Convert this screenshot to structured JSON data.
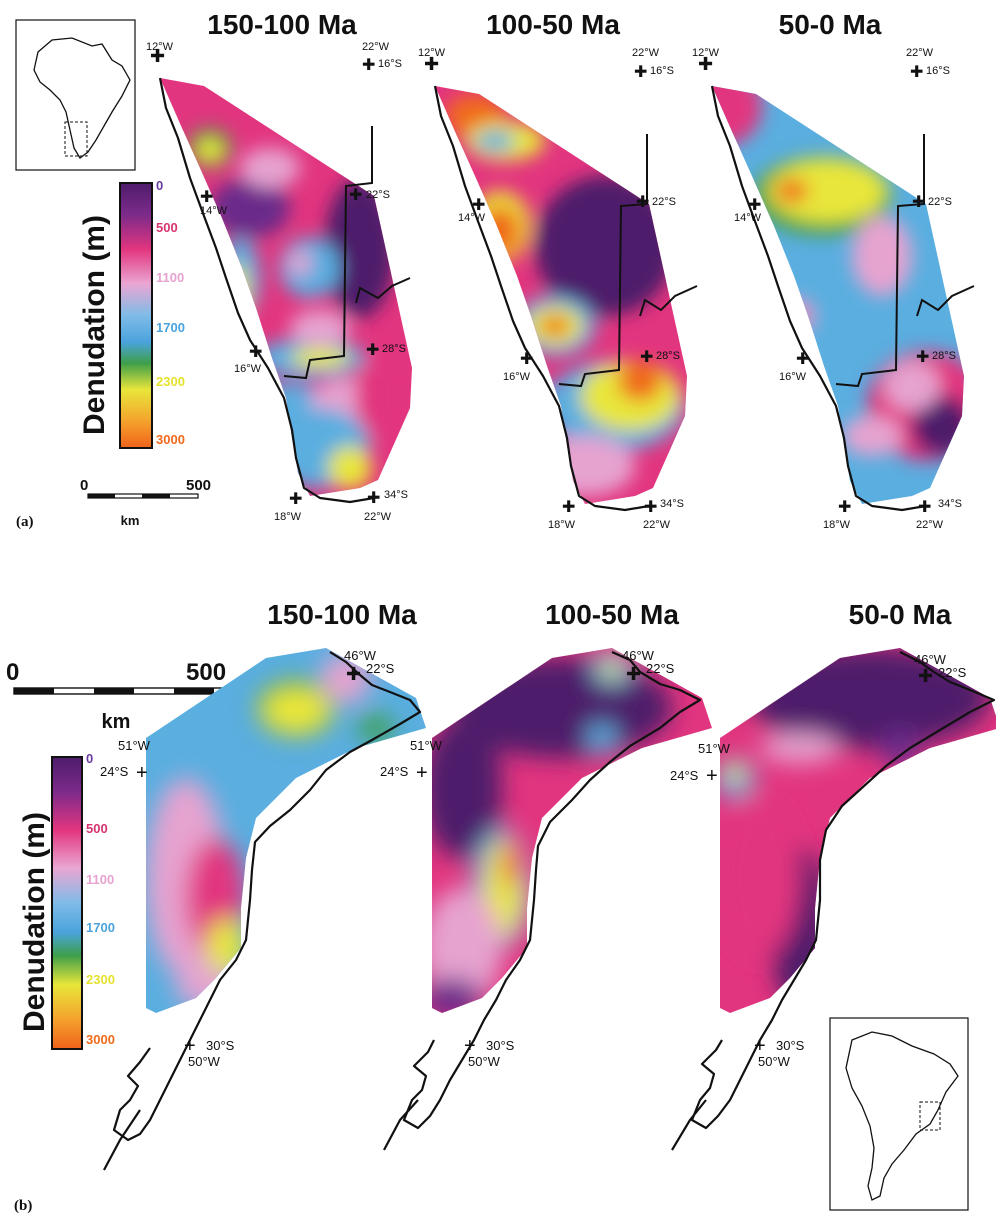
{
  "colors": {
    "d0": "#5b1f73",
    "d500": "#7a2a86",
    "d800": "#e9367f",
    "d1100": "#e7a3cf",
    "d1400": "#7fb9e8",
    "d1700": "#5aaee0",
    "d2000": "#3e9f4a",
    "d2300": "#e6e53a",
    "d2700": "#f2a02a",
    "d3000": "#f06a1a",
    "outline": "#111111"
  },
  "legend": {
    "title": "Denudation (m)",
    "ticks": [
      {
        "value": "0",
        "color": "#6a3aa0"
      },
      {
        "value": "500",
        "color": "#d6336f"
      },
      {
        "value": "1100",
        "color": "#e6a3d0"
      },
      {
        "value": "1700",
        "color": "#4aa3dc"
      },
      {
        "value": "2300",
        "color": "#e5e22e"
      },
      {
        "value": "3000",
        "color": "#f06a1a"
      }
    ]
  },
  "panel_a": {
    "label": "(a)",
    "scale": {
      "start": "0",
      "end": "500",
      "unit": "km"
    },
    "periods": [
      "150-100 Ma",
      "100-50 Ma",
      "50-0 Ma"
    ],
    "coords": {
      "w12": "12°W",
      "w22": "22°W",
      "s16": "16°S",
      "w14": "14°W",
      "s22": "22°S",
      "w16": "16°W",
      "s28": "28°S",
      "w18": "18°W",
      "w22b": "22°W",
      "s34": "34°S"
    },
    "inset_region": "Africa"
  },
  "panel_b": {
    "label": "(b)",
    "scale": {
      "start": "0",
      "end": "500",
      "unit": "km"
    },
    "periods": [
      "150-100 Ma",
      "100-50 Ma",
      "50-0 Ma"
    ],
    "coords": {
      "w46": "46°W",
      "s22": "22°S",
      "w51": "51°W",
      "s24": "24°S",
      "s30": "30°S",
      "w50": "50°W"
    },
    "inset_region": "South America"
  }
}
